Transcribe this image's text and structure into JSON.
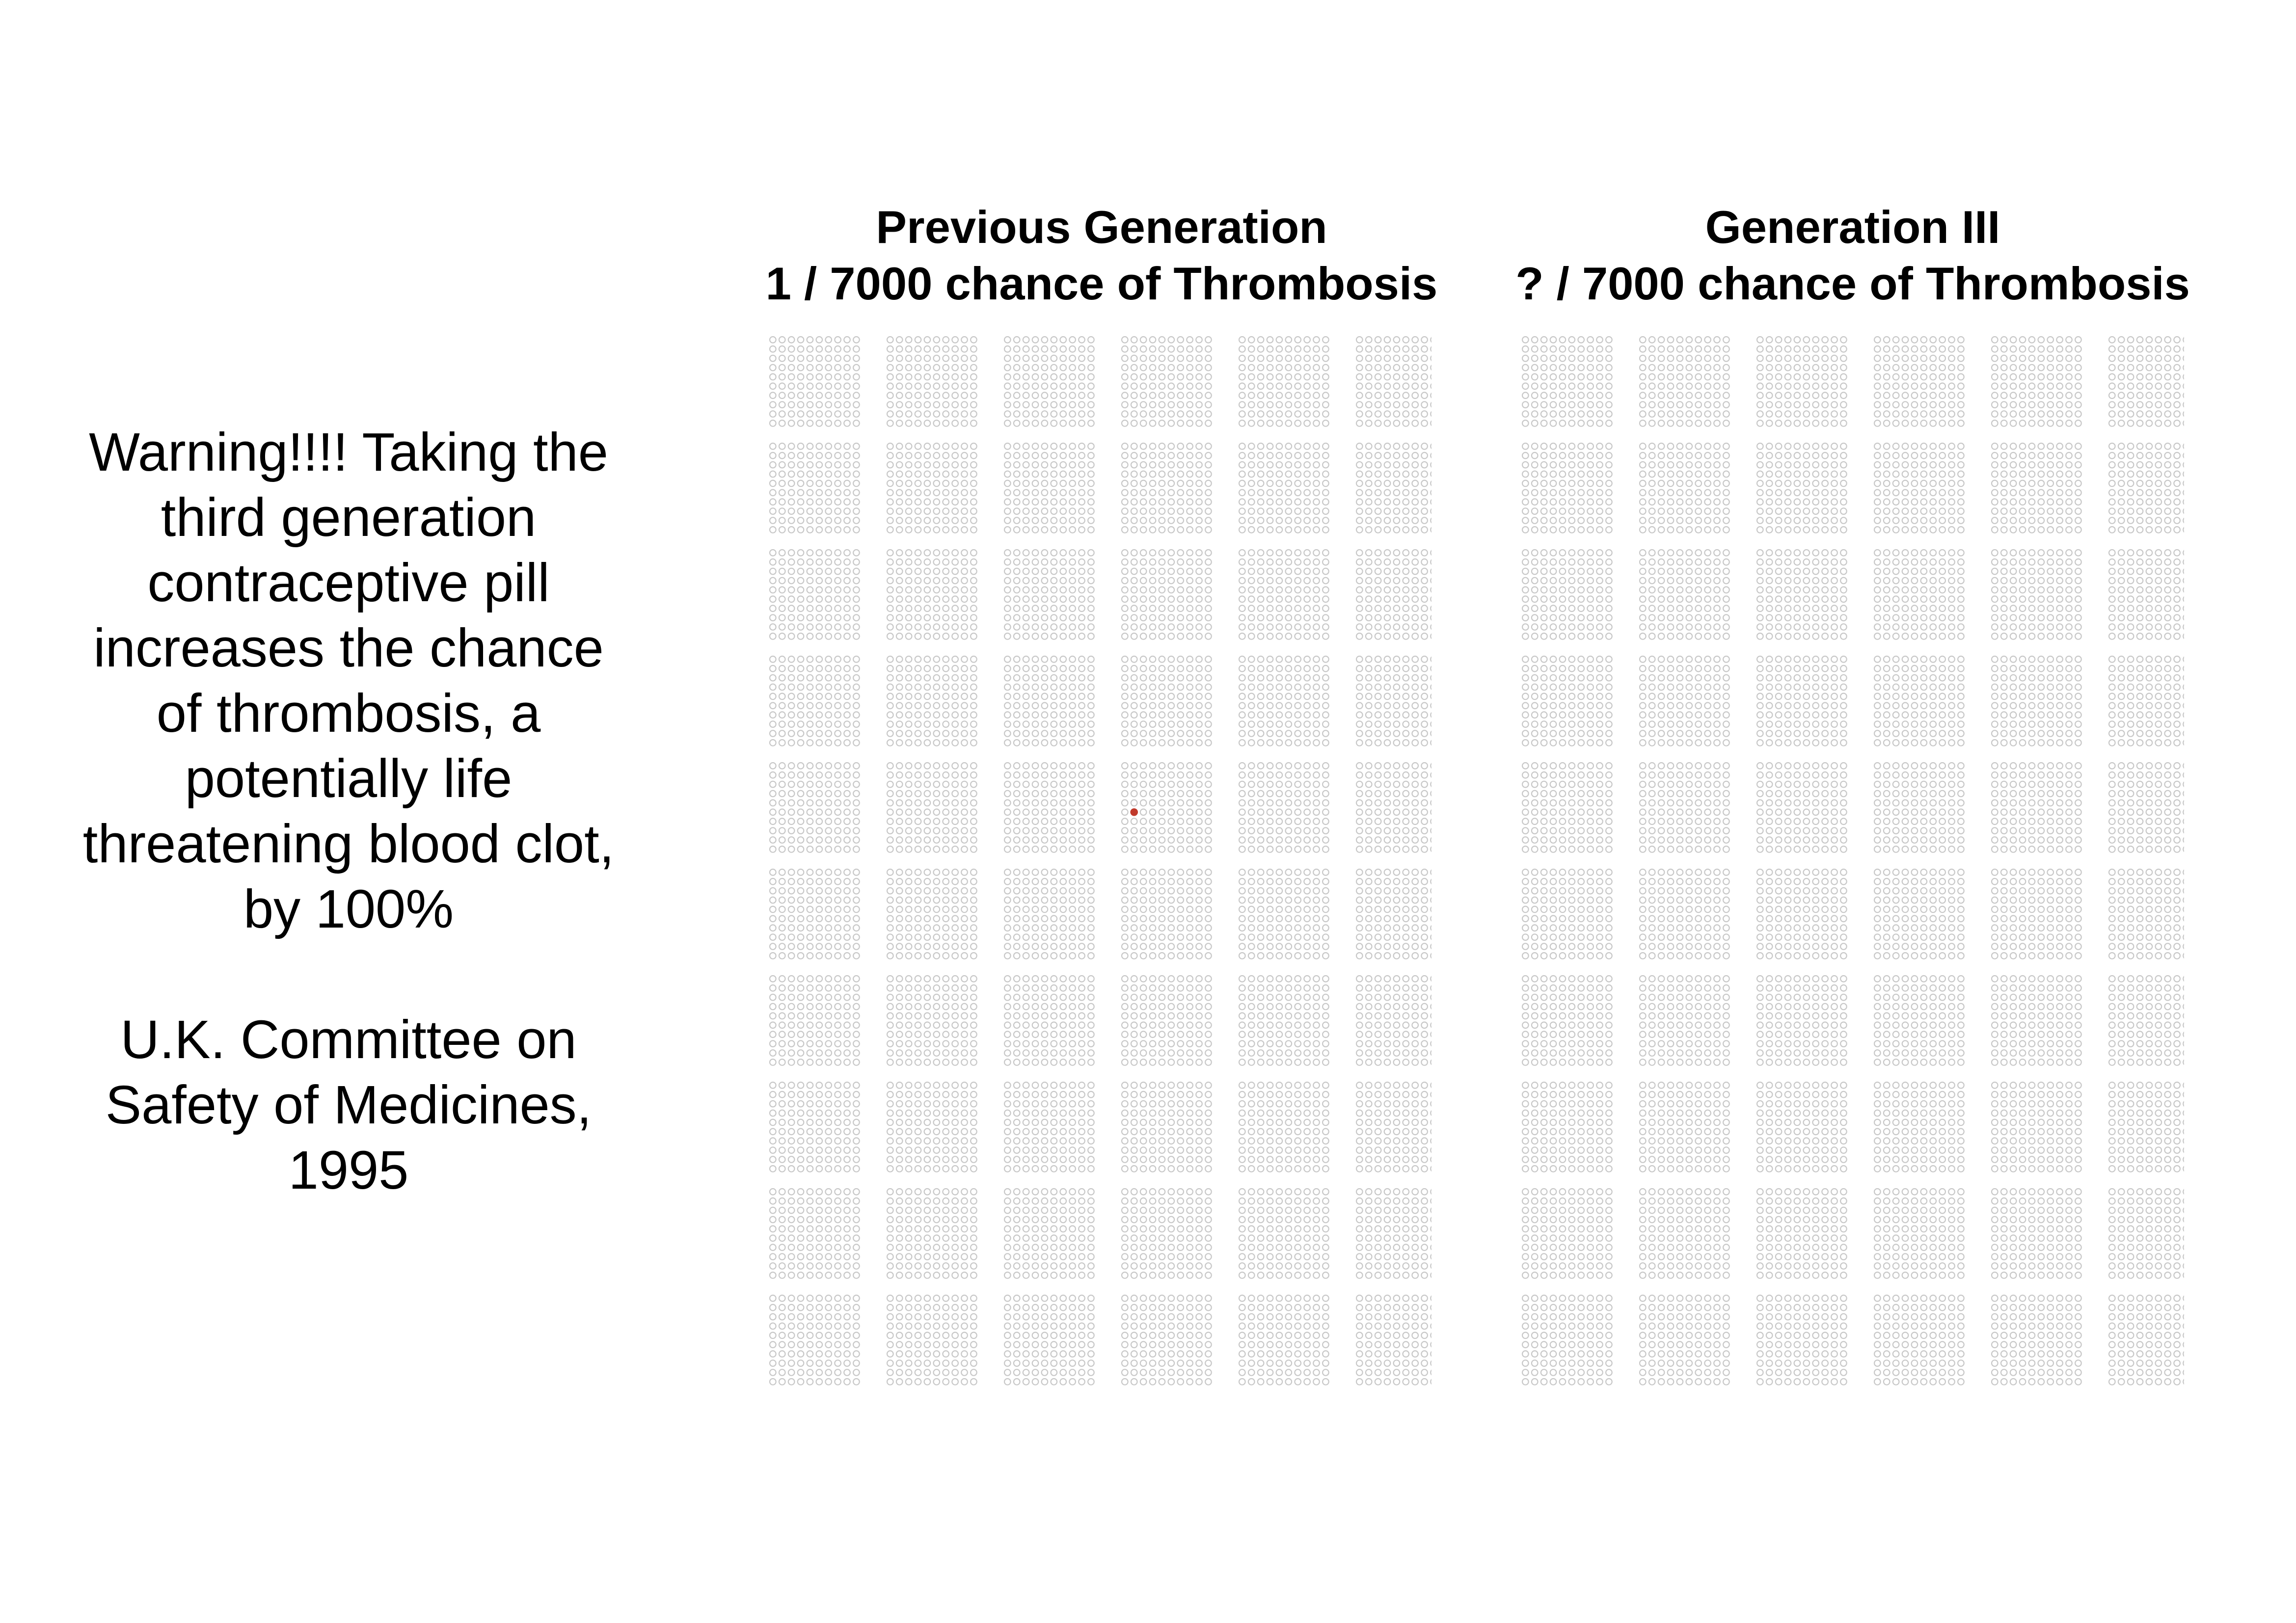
{
  "warning": {
    "lines": [
      "Warning!!!! Taking the",
      "third generation",
      "contraceptive pill",
      "increases the chance",
      "of thrombosis, a",
      "potentially life",
      "threatening blood clot,",
      "by 100%"
    ],
    "source_lines": [
      "U.K. Committee on",
      "Safety of Medicines,",
      "1995"
    ]
  },
  "chart_data": [
    {
      "type": "icon-array",
      "title_line1": "Previous Generation",
      "title_line2": "1 / 7000 chance of Thrombosis",
      "total": 7000,
      "highlighted": 1,
      "columns": 70,
      "rows": 100,
      "highlight_cell": {
        "column": 31,
        "row": 45
      },
      "dot_color": "#c8c8c8",
      "highlight_color": "#c0392b"
    },
    {
      "type": "icon-array",
      "title_line1": "Generation III",
      "title_line2": "? / 7000 chance of Thrombosis",
      "total": 7000,
      "highlighted": null,
      "columns": 70,
      "rows": 100,
      "dot_color": "#c8c8c8"
    }
  ]
}
